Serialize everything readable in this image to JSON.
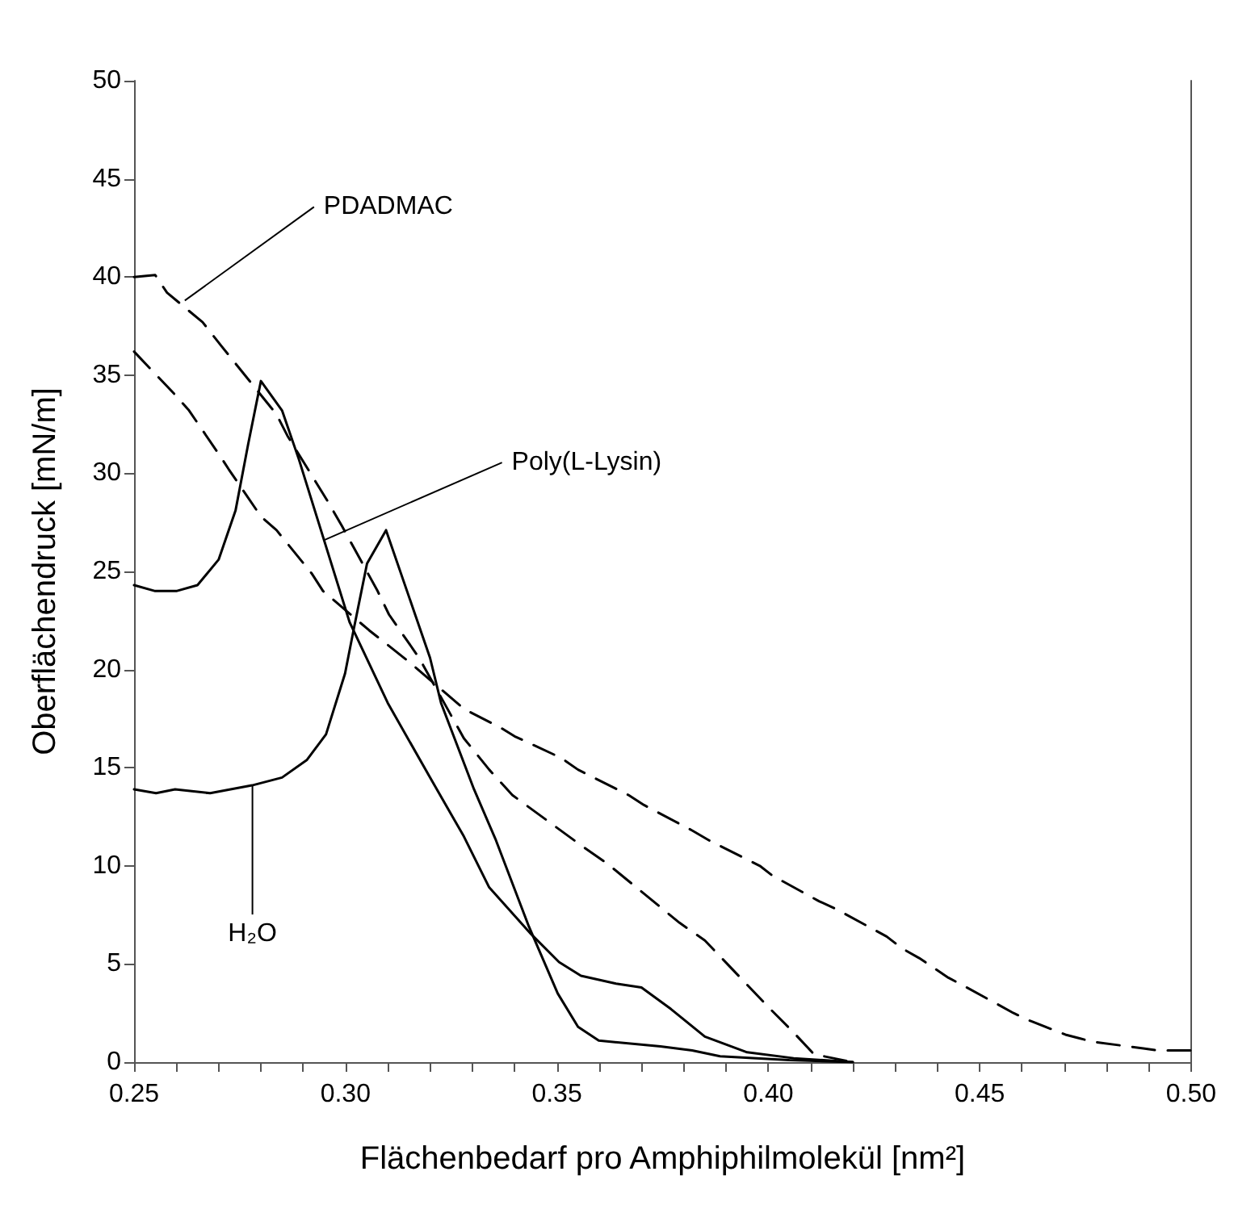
{
  "chart_data": {
    "type": "line",
    "xlabel": "Flächenbedarf pro Amphiphilmolekül [nm²]",
    "ylabel": "Oberflächendruck [mN/m]",
    "xlim": [
      0.25,
      0.5
    ],
    "xticks": [
      {
        "value": 0.25,
        "label": "0.25"
      },
      {
        "value": 0.26,
        "label": null
      },
      {
        "value": 0.27,
        "label": null
      },
      {
        "value": 0.28,
        "label": null
      },
      {
        "value": 0.29,
        "label": null
      },
      {
        "value": 0.3,
        "label": "0.30"
      },
      {
        "value": 0.31,
        "label": null
      },
      {
        "value": 0.32,
        "label": null
      },
      {
        "value": 0.33,
        "label": null
      },
      {
        "value": 0.34,
        "label": null
      },
      {
        "value": 0.35,
        "label": "0.35"
      },
      {
        "value": 0.36,
        "label": null
      },
      {
        "value": 0.37,
        "label": null
      },
      {
        "value": 0.38,
        "label": null
      },
      {
        "value": 0.39,
        "label": null
      },
      {
        "value": 0.4,
        "label": "0.40"
      },
      {
        "value": 0.41,
        "label": null
      },
      {
        "value": 0.42,
        "label": null
      },
      {
        "value": 0.43,
        "label": null
      },
      {
        "value": 0.44,
        "label": null
      },
      {
        "value": 0.45,
        "label": "0.45"
      },
      {
        "value": 0.46,
        "label": null
      },
      {
        "value": 0.47,
        "label": null
      },
      {
        "value": 0.48,
        "label": null
      },
      {
        "value": 0.49,
        "label": null
      },
      {
        "value": 0.5,
        "label": "0.50"
      }
    ],
    "ylim": [
      0,
      50
    ],
    "yticks": [
      0,
      5,
      10,
      15,
      20,
      25,
      30,
      35,
      40,
      45,
      50
    ],
    "grid": false,
    "marker": "none",
    "series": [
      {
        "color": "#000000",
        "line_style": "dashed",
        "x": [
          0.25,
          0.255,
          0.2578,
          0.2662,
          0.2706,
          0.2837,
          0.2863,
          0.296,
          0.2992,
          0.3076,
          0.3103,
          0.3174,
          0.328,
          0.334,
          0.3395,
          0.356,
          0.362,
          0.379,
          0.385,
          0.4005,
          0.4056,
          0.4108,
          0.42
        ],
        "values": [
          40,
          40.1,
          39.2,
          37.7,
          36.5,
          33,
          31.9,
          28.5,
          27.3,
          24,
          22.8,
          20.6,
          16.5,
          14.9,
          13.6,
          11,
          10.1,
          7.1,
          6.2,
          2.7,
          1.6,
          0.4,
          0
        ]
      },
      {
        "color": "#000000",
        "line_style": "dashed",
        "x": [
          0.25,
          0.2597,
          0.263,
          0.2706,
          0.2724,
          0.28,
          0.2837,
          0.292,
          0.2947,
          0.3056,
          0.315,
          0.328,
          0.337,
          0.34,
          0.351,
          0.355,
          0.367,
          0.3706,
          0.382,
          0.386,
          0.398,
          0.401,
          0.412,
          0.416,
          0.428,
          0.4316,
          0.4357,
          0.4426,
          0.447,
          0.458,
          0.462,
          0.4703,
          0.4738,
          0.477,
          0.4887,
          0.492,
          0.5
        ],
        "values": [
          36.2,
          34,
          33.2,
          30.8,
          30.2,
          27.8,
          27.1,
          24.9,
          24,
          22,
          20.4,
          18,
          17,
          16.6,
          15.5,
          14.9,
          13.6,
          13.1,
          11.8,
          11.3,
          10,
          9.5,
          8.2,
          7.8,
          6.4,
          5.8,
          5.3,
          4.3,
          3.8,
          2.5,
          2.1,
          1.4,
          1.2,
          1.03,
          0.7,
          0.6,
          0.6
        ]
      },
      {
        "color": "#000000",
        "line_style": "solid",
        "x": [
          0.25,
          0.255,
          0.26,
          0.265,
          0.27,
          0.274,
          0.277,
          0.28,
          0.285,
          0.289,
          0.301,
          0.31,
          0.32,
          0.328,
          0.334,
          0.344,
          0.3505,
          0.3557,
          0.364,
          0.37,
          0.377,
          0.385,
          0.395,
          0.406,
          0.42
        ],
        "values": [
          24.3,
          24,
          24,
          24.3,
          25.6,
          28.1,
          31.5,
          34.7,
          33.2,
          30.7,
          22.4,
          18.3,
          14.5,
          11.5,
          8.9,
          6.5,
          5.1,
          4.4,
          4,
          3.8,
          2.7,
          1.3,
          0.5,
          0.2,
          0
        ]
      },
      {
        "color": "#000000",
        "line_style": "solid",
        "x": [
          0.25,
          0.2552,
          0.2597,
          0.268,
          0.2779,
          0.285,
          0.2909,
          0.2954,
          0.2999,
          0.302,
          0.3051,
          0.3096,
          0.32,
          0.3226,
          0.3304,
          0.3356,
          0.3434,
          0.3502,
          0.355,
          0.3599,
          0.3745,
          0.382,
          0.3886,
          0.405,
          0.42
        ],
        "values": [
          13.9,
          13.7,
          13.9,
          13.7,
          14.1,
          14.5,
          15.4,
          16.7,
          19.8,
          22.1,
          25.4,
          27.1,
          20.6,
          18.3,
          13.9,
          11.3,
          6.9,
          3.5,
          1.8,
          1.1,
          0.8,
          0.6,
          0.3,
          0.1,
          0
        ]
      }
    ],
    "annotations": [
      {
        "text": "PDADMAC",
        "x": 0.262,
        "y": 38.8
      },
      {
        "text": "Poly(L-Lysin)",
        "x": 0.295,
        "y": 26.6
      },
      {
        "text": "H₂O",
        "x": 0.278,
        "y": 14.1
      }
    ]
  }
}
